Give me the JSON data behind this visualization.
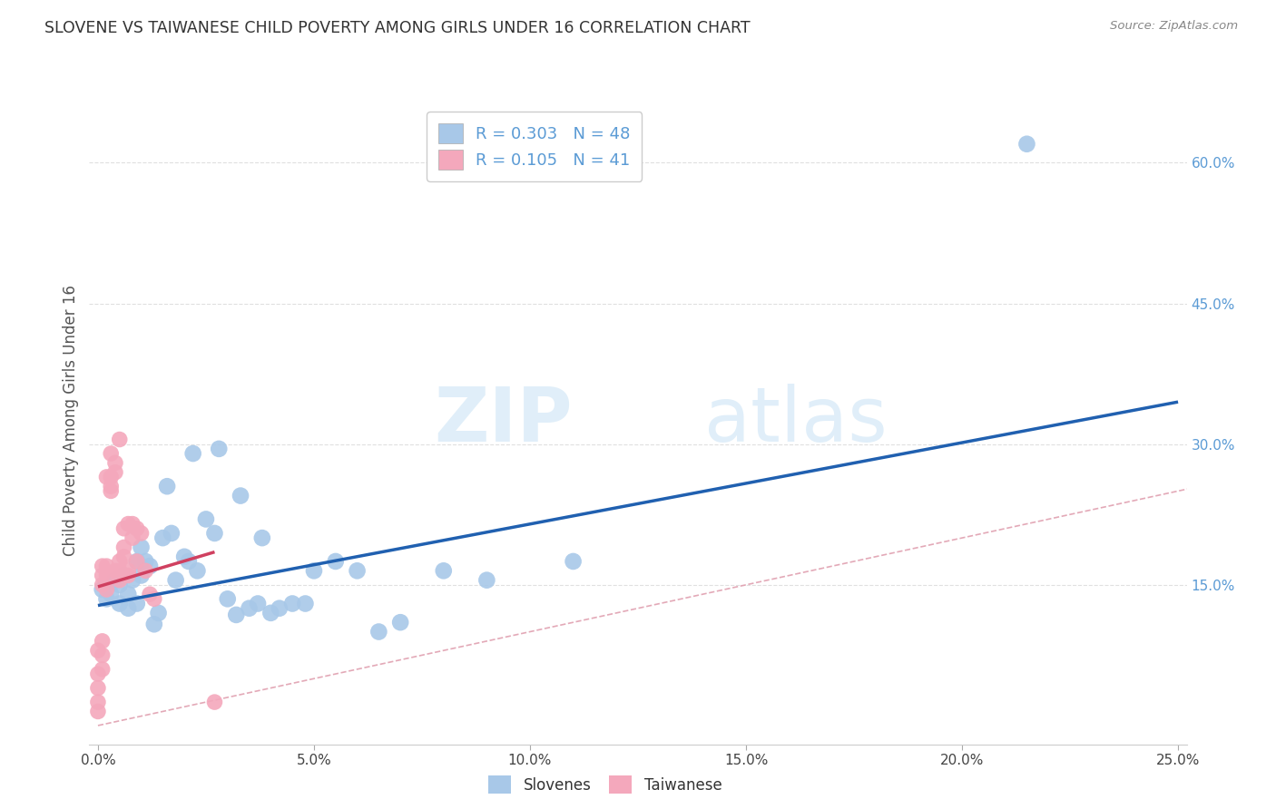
{
  "title": "SLOVENE VS TAIWANESE CHILD POVERTY AMONG GIRLS UNDER 16 CORRELATION CHART",
  "source": "Source: ZipAtlas.com",
  "ylabel": "Child Poverty Among Girls Under 16",
  "xlabel_ticks": [
    "0.0%",
    "5.0%",
    "10.0%",
    "15.0%",
    "20.0%",
    "25.0%"
  ],
  "xlabel_vals": [
    0.0,
    0.05,
    0.1,
    0.15,
    0.2,
    0.25
  ],
  "ylabel_ticks_right": [
    "15.0%",
    "30.0%",
    "45.0%",
    "60.0%"
  ],
  "ylabel_vals_right": [
    0.15,
    0.3,
    0.45,
    0.6
  ],
  "xlim": [
    -0.002,
    0.252
  ],
  "ylim": [
    -0.02,
    0.67
  ],
  "R_slovene": 0.303,
  "N_slovene": 48,
  "R_taiwanese": 0.105,
  "N_taiwanese": 41,
  "slovene_color": "#a8c8e8",
  "taiwanese_color": "#f4a8bc",
  "slovene_line_color": "#2060b0",
  "taiwanese_line_color": "#d04060",
  "diagonal_color": "#c8c8c8",
  "watermark_zip": "ZIP",
  "watermark_atlas": "atlas",
  "background_color": "#ffffff",
  "grid_color": "#e0e0e0",
  "slovene_x": [
    0.001,
    0.002,
    0.003,
    0.004,
    0.005,
    0.005,
    0.006,
    0.007,
    0.007,
    0.008,
    0.009,
    0.009,
    0.01,
    0.01,
    0.011,
    0.012,
    0.013,
    0.014,
    0.015,
    0.016,
    0.017,
    0.018,
    0.02,
    0.021,
    0.022,
    0.023,
    0.025,
    0.027,
    0.028,
    0.03,
    0.032,
    0.033,
    0.035,
    0.037,
    0.038,
    0.04,
    0.042,
    0.045,
    0.048,
    0.05,
    0.055,
    0.06,
    0.065,
    0.07,
    0.08,
    0.09,
    0.11,
    0.215
  ],
  "slovene_y": [
    0.145,
    0.135,
    0.14,
    0.155,
    0.15,
    0.13,
    0.16,
    0.125,
    0.14,
    0.155,
    0.13,
    0.175,
    0.16,
    0.19,
    0.175,
    0.17,
    0.108,
    0.12,
    0.2,
    0.255,
    0.205,
    0.155,
    0.18,
    0.175,
    0.29,
    0.165,
    0.22,
    0.205,
    0.295,
    0.135,
    0.118,
    0.245,
    0.125,
    0.13,
    0.2,
    0.12,
    0.125,
    0.13,
    0.13,
    0.165,
    0.175,
    0.165,
    0.1,
    0.11,
    0.165,
    0.155,
    0.175,
    0.62
  ],
  "taiwanese_x": [
    0.0,
    0.0,
    0.0,
    0.0,
    0.0,
    0.001,
    0.001,
    0.001,
    0.001,
    0.001,
    0.001,
    0.002,
    0.002,
    0.002,
    0.002,
    0.003,
    0.003,
    0.003,
    0.003,
    0.004,
    0.004,
    0.004,
    0.005,
    0.005,
    0.005,
    0.005,
    0.006,
    0.006,
    0.006,
    0.007,
    0.007,
    0.007,
    0.008,
    0.008,
    0.009,
    0.009,
    0.01,
    0.011,
    0.012,
    0.013,
    0.027
  ],
  "taiwanese_y": [
    0.015,
    0.025,
    0.04,
    0.055,
    0.08,
    0.06,
    0.075,
    0.09,
    0.15,
    0.16,
    0.17,
    0.145,
    0.16,
    0.17,
    0.265,
    0.25,
    0.255,
    0.265,
    0.29,
    0.27,
    0.28,
    0.165,
    0.155,
    0.165,
    0.175,
    0.305,
    0.18,
    0.19,
    0.21,
    0.16,
    0.165,
    0.215,
    0.2,
    0.215,
    0.175,
    0.21,
    0.205,
    0.165,
    0.14,
    0.135,
    0.025
  ],
  "slovene_line_x": [
    0.0,
    0.25
  ],
  "slovene_line_y": [
    0.128,
    0.345
  ],
  "taiwanese_line_x": [
    0.0,
    0.027
  ],
  "taiwanese_line_y": [
    0.148,
    0.185
  ]
}
